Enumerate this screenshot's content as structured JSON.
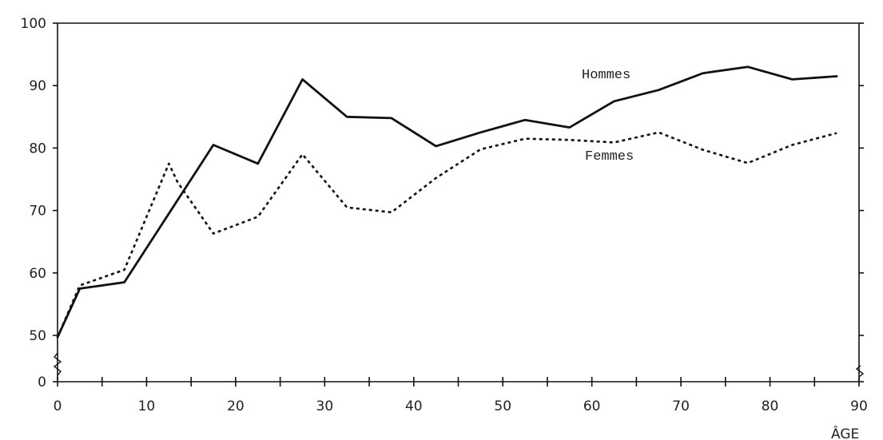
{
  "chart_data": {
    "type": "line",
    "title": "",
    "xlabel": "ÂGE",
    "ylabel": "",
    "xlim": [
      0,
      90
    ],
    "ylim_display": [
      0,
      100
    ],
    "y_break": "between 0 and 50 (axis interrupted)",
    "grid": false,
    "xticks": [
      0,
      10,
      20,
      30,
      40,
      50,
      60,
      70,
      80,
      90
    ],
    "yticks": [
      0,
      50,
      60,
      70,
      80,
      90,
      100
    ],
    "series": [
      {
        "name": "Hommes",
        "style": "solid",
        "x": [
          0,
          2.5,
          7.5,
          17.5,
          22.5,
          27.5,
          32.5,
          37.5,
          42.5,
          47.5,
          52.5,
          57.5,
          62.5,
          67.5,
          72.5,
          77.5,
          82.5,
          87.5
        ],
        "y": [
          48,
          57.5,
          58.5,
          80.5,
          77.5,
          91,
          85,
          84.8,
          80.3,
          82.5,
          84.5,
          83.3,
          87.5,
          89.3,
          92,
          93,
          91,
          91.5
        ]
      },
      {
        "name": "Femmes",
        "style": "dotted",
        "x": [
          0,
          2.5,
          7.5,
          12.5,
          13.5,
          17.5,
          22.5,
          27.5,
          32.5,
          37.5,
          42.5,
          47.5,
          52.5,
          57.5,
          62.5,
          67.5,
          72.5,
          77.5,
          82.5,
          87.5
        ],
        "y": [
          48,
          58,
          60.5,
          77.5,
          74.5,
          66.3,
          69,
          79,
          70.5,
          69.7,
          75.2,
          79.8,
          81.5,
          81.3,
          80.9,
          82.5,
          79.7,
          77.6,
          80.5,
          82.4
        ]
      }
    ],
    "labels": {
      "hommes": "Hommes",
      "femmes": "Femmes"
    }
  }
}
